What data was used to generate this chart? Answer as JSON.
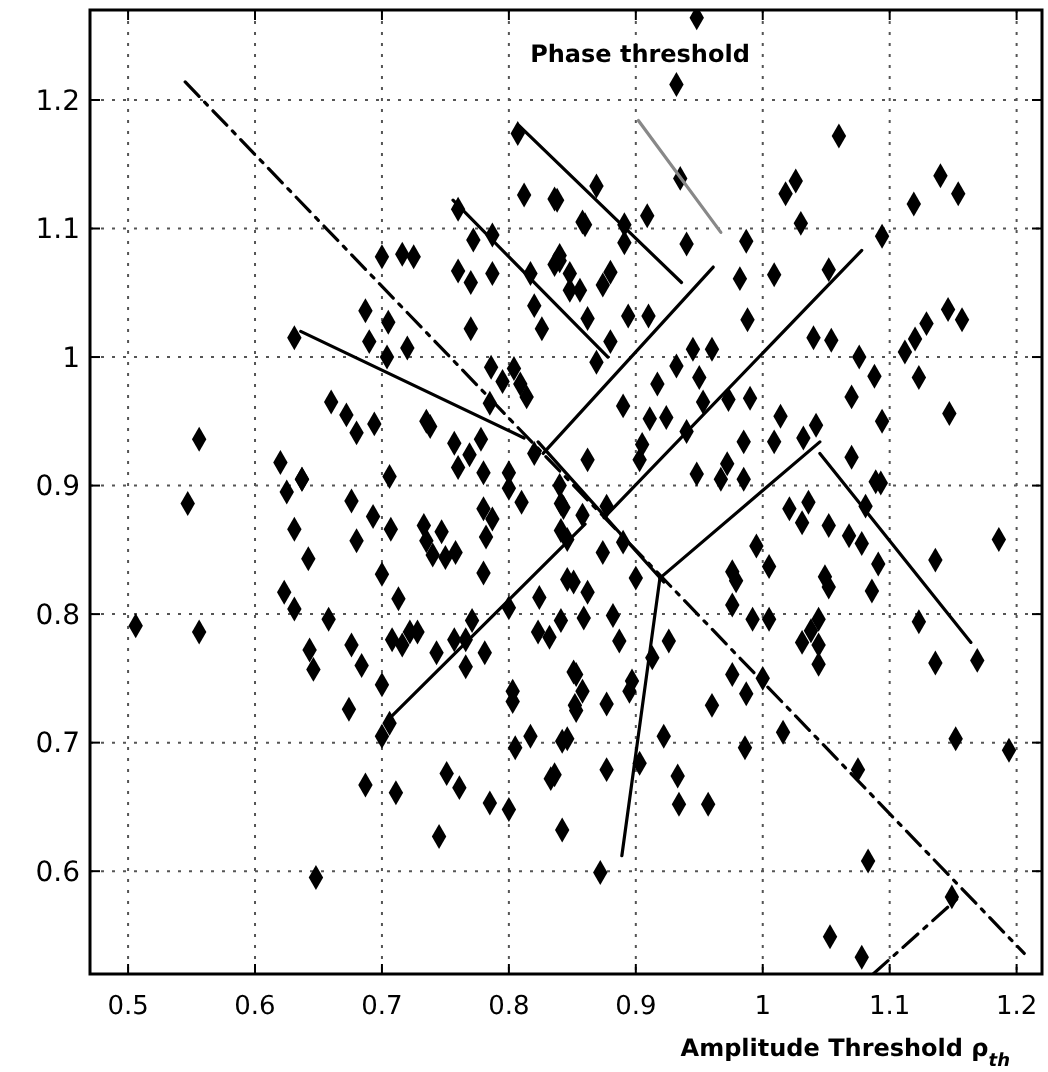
{
  "chart_data": {
    "type": "scatter",
    "xlabel": "Amplitude Threshold ρ$_{th}$",
    "annotations": [
      "Phase threshold"
    ],
    "xlim": [
      0.47,
      1.22
    ],
    "ylim": [
      0.52,
      1.27
    ],
    "xticks": [
      0.5,
      0.6,
      0.7,
      0.8,
      0.9,
      1,
      1.1,
      1.2
    ],
    "yticks": [
      0.6,
      0.7,
      0.8,
      0.9,
      1,
      1.1,
      1.2
    ],
    "grid": true,
    "series": [
      {
        "marker": "diamond",
        "color": "#000000",
        "x": [
          0.807,
          0.812,
          0.836,
          0.76,
          0.858,
          0.787,
          0.772,
          0.7,
          0.716,
          0.725,
          0.76,
          0.77,
          0.787,
          0.84,
          0.836,
          0.817,
          0.848,
          0.856,
          0.82,
          0.687,
          0.705,
          0.77,
          0.826,
          0.631,
          0.69,
          0.72,
          0.704,
          0.786,
          0.804,
          0.795,
          0.809,
          0.785,
          0.814,
          0.66,
          0.672,
          0.694,
          0.68,
          0.735,
          0.738,
          0.757,
          0.778,
          0.769,
          0.556,
          0.62,
          0.637,
          0.706,
          0.76,
          0.78,
          0.8,
          0.82,
          0.84,
          0.948,
          0.932,
          1.06,
          0.935,
          1.026,
          1.018,
          1.14,
          1.154,
          1.119,
          0.909,
          0.869,
          0.838,
          0.86,
          0.891,
          0.94,
          0.987,
          1.03,
          1.094,
          0.891,
          0.84,
          0.88,
          0.874,
          0.848,
          0.982,
          1.009,
          1.052,
          0.988,
          0.862,
          0.894,
          0.91,
          1.146,
          1.157,
          1.129,
          1.12,
          1.112,
          0.88,
          1.04,
          1.054,
          1.076,
          0.869,
          0.945,
          0.96,
          0.932,
          0.95,
          0.917,
          1.088,
          1.123,
          0.953,
          0.89,
          0.911,
          0.924,
          0.973,
          0.99,
          1.014,
          1.07,
          1.147,
          1.094,
          0.905,
          0.94,
          0.985,
          1.009,
          1.042,
          1.032,
          0.862,
          0.903,
          0.972,
          1.07,
          0.948,
          0.967,
          0.985,
          1.093,
          0.547,
          0.637,
          0.625,
          0.676,
          0.693,
          0.631,
          0.68,
          0.707,
          0.642,
          0.7,
          0.733,
          0.747,
          0.735,
          0.74,
          0.75,
          0.758,
          0.78,
          0.787,
          0.782,
          0.78,
          0.8,
          0.81,
          0.841,
          0.841,
          0.846,
          0.623,
          0.631,
          0.658,
          0.713,
          0.708,
          0.722,
          0.728,
          0.716,
          0.506,
          0.556,
          0.676,
          0.743,
          0.757,
          0.771,
          0.766,
          0.781,
          0.766,
          0.643,
          0.646,
          0.684,
          0.7,
          0.674,
          0.8,
          0.824,
          0.832,
          0.823,
          0.803,
          0.803,
          0.852,
          0.853,
          0.817,
          0.805,
          0.842,
          0.7,
          0.706,
          0.687,
          0.751,
          0.761,
          0.711,
          0.785,
          0.8,
          0.833,
          0.745,
          0.842,
          0.648,
          0.843,
          0.858,
          0.877,
          0.846,
          0.851,
          0.874,
          0.89,
          0.9,
          0.862,
          0.882,
          0.859,
          0.841,
          0.887,
          0.851,
          0.858,
          0.877,
          0.895,
          0.897,
          0.913,
          0.926,
          0.853,
          0.846,
          0.836,
          0.877,
          0.903,
          0.933,
          0.922,
          0.934,
          0.957,
          0.96,
          0.976,
          0.987,
          1.0,
          0.986,
          1.016,
          1.044,
          1.031,
          1.044,
          1.038,
          0.992,
          1.005,
          1.044,
          0.976,
          0.976,
          0.979,
          1.005,
          0.995,
          1.021,
          1.036,
          1.031,
          1.052,
          1.068,
          1.078,
          1.081,
          1.089,
          1.049,
          1.052,
          1.086,
          1.091,
          1.123,
          1.136,
          1.136,
          1.169,
          1.186,
          1.152,
          1.194,
          1.075,
          1.083,
          1.149,
          1.053,
          1.078,
          0.872
        ],
        "values": [
          1.174,
          1.126,
          1.123,
          1.115,
          1.105,
          1.095,
          1.091,
          1.078,
          1.08,
          1.078,
          1.067,
          1.058,
          1.065,
          1.079,
          1.072,
          1.065,
          1.065,
          1.052,
          1.04,
          1.036,
          1.027,
          1.022,
          1.022,
          1.015,
          1.012,
          1.007,
          1.0,
          0.992,
          0.991,
          0.981,
          0.979,
          0.964,
          0.969,
          0.965,
          0.955,
          0.948,
          0.941,
          0.95,
          0.946,
          0.933,
          0.936,
          0.924,
          0.936,
          0.918,
          0.905,
          0.907,
          0.914,
          0.91,
          0.91,
          0.925,
          0.9,
          1.264,
          1.212,
          1.172,
          1.139,
          1.137,
          1.127,
          1.141,
          1.127,
          1.119,
          1.11,
          1.133,
          1.122,
          1.103,
          1.103,
          1.088,
          1.09,
          1.104,
          1.094,
          1.089,
          1.075,
          1.066,
          1.056,
          1.052,
          1.061,
          1.064,
          1.068,
          1.029,
          1.03,
          1.032,
          1.032,
          1.037,
          1.029,
          1.026,
          1.014,
          1.004,
          1.012,
          1.015,
          1.013,
          1.0,
          0.996,
          1.006,
          1.006,
          0.993,
          0.984,
          0.979,
          0.985,
          0.984,
          0.965,
          0.962,
          0.952,
          0.953,
          0.967,
          0.968,
          0.954,
          0.969,
          0.956,
          0.95,
          0.932,
          0.942,
          0.934,
          0.934,
          0.947,
          0.937,
          0.92,
          0.92,
          0.917,
          0.922,
          0.909,
          0.905,
          0.905,
          0.902,
          0.886,
          0.905,
          0.895,
          0.888,
          0.876,
          0.866,
          0.857,
          0.866,
          0.843,
          0.831,
          0.869,
          0.864,
          0.857,
          0.846,
          0.844,
          0.848,
          0.882,
          0.874,
          0.86,
          0.832,
          0.898,
          0.887,
          0.886,
          0.865,
          0.827,
          0.817,
          0.804,
          0.796,
          0.812,
          0.78,
          0.786,
          0.786,
          0.776,
          0.791,
          0.786,
          0.776,
          0.77,
          0.78,
          0.795,
          0.78,
          0.77,
          0.759,
          0.772,
          0.757,
          0.76,
          0.745,
          0.726,
          0.805,
          0.813,
          0.782,
          0.786,
          0.74,
          0.732,
          0.729,
          0.753,
          0.705,
          0.696,
          0.701,
          0.705,
          0.715,
          0.667,
          0.676,
          0.665,
          0.661,
          0.653,
          0.648,
          0.672,
          0.627,
          0.632,
          0.595,
          0.883,
          0.877,
          0.884,
          0.858,
          0.825,
          0.848,
          0.856,
          0.828,
          0.817,
          0.799,
          0.797,
          0.795,
          0.779,
          0.755,
          0.74,
          0.73,
          0.74,
          0.748,
          0.766,
          0.779,
          0.725,
          0.703,
          0.675,
          0.679,
          0.684,
          0.674,
          0.705,
          0.652,
          0.652,
          0.729,
          0.753,
          0.738,
          0.75,
          0.696,
          0.708,
          0.761,
          0.778,
          0.776,
          0.787,
          0.796,
          0.796,
          0.796,
          0.807,
          0.833,
          0.826,
          0.837,
          0.853,
          0.882,
          0.887,
          0.871,
          0.869,
          0.861,
          0.855,
          0.884,
          0.903,
          0.829,
          0.821,
          0.818,
          0.839,
          0.794,
          0.762,
          0.842,
          0.764,
          0.858,
          0.703,
          0.694,
          0.679,
          0.608,
          0.58,
          0.549,
          0.533,
          0.599
        ]
      },
      {
        "type": "line",
        "color": "#000000",
        "line_style": "dashed",
        "x": [
          0.545,
          1.206
        ],
        "values": [
          1.214,
          0.536
        ]
      },
      {
        "type": "line",
        "color": "#000000",
        "line_style": "dashed",
        "x": [
          1.087,
          1.156
        ],
        "values": [
          0.52,
          0.581
        ]
      },
      {
        "type": "line",
        "color": "#000000",
        "x": [
          0.827,
          0.961
        ],
        "values": [
          0.925,
          1.07
        ]
      },
      {
        "type": "line",
        "color": "#000000",
        "x": [
          0.875,
          1.078
        ],
        "values": [
          0.875,
          1.083
        ]
      },
      {
        "type": "line",
        "color": "#000000",
        "x": [
          0.919,
          1.045
        ],
        "values": [
          0.828,
          0.934
        ]
      },
      {
        "type": "line",
        "color": "#000000",
        "x": [
          0.823,
          0.922
        ],
        "values": [
          0.934,
          0.825
        ]
      },
      {
        "type": "line",
        "color": "#000000",
        "x": [
          0.756,
          0.878
        ],
        "values": [
          1.122,
          1.0
        ]
      },
      {
        "type": "line",
        "color": "#000000",
        "x": [
          0.808,
          0.936
        ],
        "values": [
          1.18,
          1.058
        ]
      },
      {
        "type": "line",
        "color": "#000000",
        "x": [
          0.636,
          0.812
        ],
        "values": [
          1.02,
          0.937
        ]
      },
      {
        "type": "line",
        "color": "#888888",
        "x": [
          0.902,
          0.967
        ],
        "values": [
          1.184,
          1.097
        ]
      },
      {
        "type": "line",
        "color": "#000000",
        "x": [
          0.703,
          0.86
        ],
        "values": [
          0.716,
          0.87
        ]
      },
      {
        "type": "line",
        "color": "#000000",
        "x": [
          0.889,
          0.919
        ],
        "values": [
          0.612,
          0.828
        ]
      },
      {
        "type": "line",
        "color": "#000000",
        "x": [
          1.164,
          1.045
        ],
        "values": [
          0.778,
          0.925
        ]
      }
    ]
  }
}
